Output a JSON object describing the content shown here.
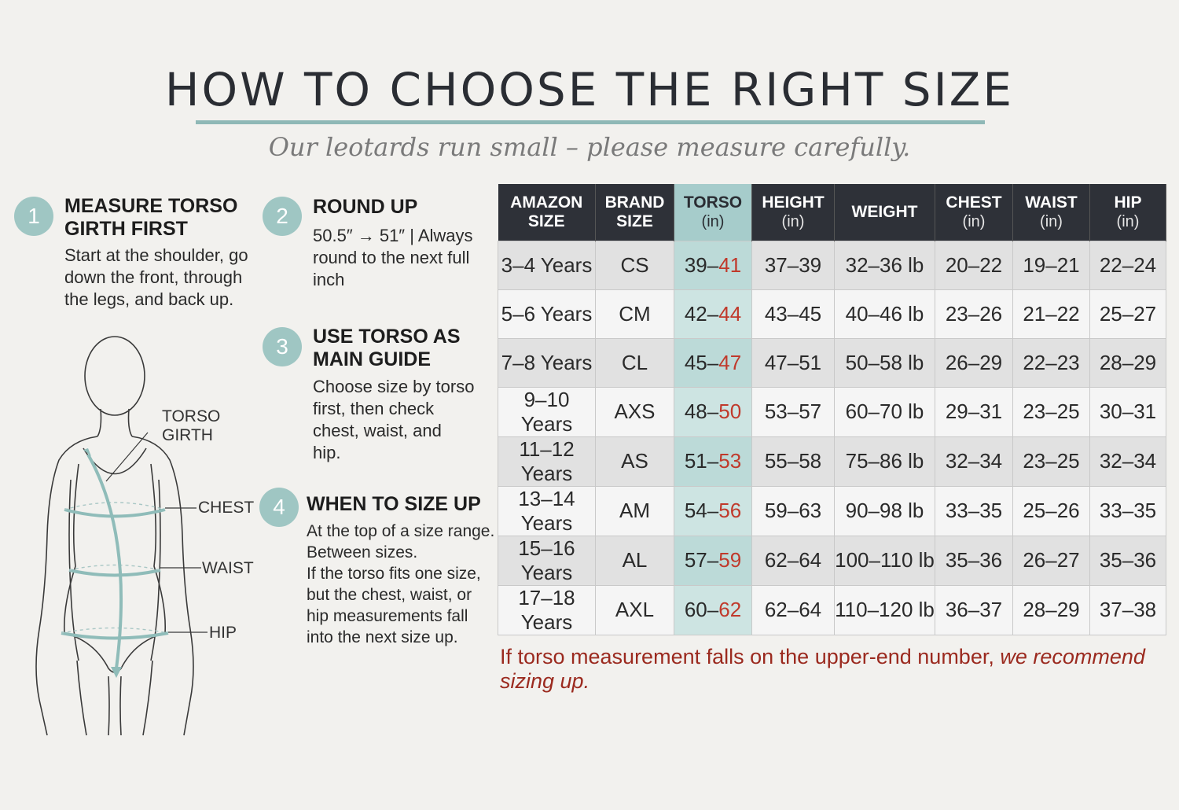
{
  "header": {
    "title": "HOW TO CHOOSE THE RIGHT SIZE",
    "subtitle": "Our leotards run small – please measure carefully."
  },
  "steps": [
    {
      "number": "1",
      "title_lines": [
        "MEASURE TORSO",
        "GIRTH FIRST"
      ],
      "body_lines": [
        "Start at the shoulder, go",
        "down the front, through",
        "the legs, and back up."
      ]
    },
    {
      "number": "2",
      "title_lines": [
        "ROUND UP"
      ],
      "body_lines": [
        "50.5″ → 51″ | Always",
        "round to the next full",
        "inch"
      ]
    },
    {
      "number": "3",
      "title_lines": [
        "USE TORSO AS",
        "MAIN GUIDE"
      ],
      "body_lines": [
        "Choose size by torso",
        "first, then check",
        "chest, waist, and",
        "hip."
      ]
    },
    {
      "number": "4",
      "title_lines": [
        "WHEN TO SIZE UP"
      ],
      "body_lines": [
        "At the top of a size range.",
        "Between sizes.",
        "If the torso fits one size,",
        "but the chest, waist, or",
        "hip measurements fall",
        "into the next size up."
      ]
    }
  ],
  "figure": {
    "labels": {
      "torso_line1": "TORSO",
      "torso_line2": "GIRTH",
      "chest": "CHEST",
      "waist": "WAIST",
      "hip": "HIP"
    },
    "accent_color": "#8fbcb9"
  },
  "table": {
    "headers": [
      {
        "line1": "AMAZON",
        "line2": "SIZE",
        "unit": ""
      },
      {
        "line1": "BRAND",
        "line2": "SIZE",
        "unit": ""
      },
      {
        "line1": "TORSO",
        "line2": "",
        "unit": "(in)"
      },
      {
        "line1": "HEIGHT",
        "line2": "",
        "unit": "(in)"
      },
      {
        "line1": "WEIGHT",
        "line2": "",
        "unit": ""
      },
      {
        "line1": "CHEST",
        "line2": "",
        "unit": "(in)"
      },
      {
        "line1": "WAIST",
        "line2": "",
        "unit": "(in)"
      },
      {
        "line1": "HIP",
        "line2": "",
        "unit": "(in)"
      }
    ],
    "rows": [
      {
        "amazon": "3–4 Years",
        "brand": "CS",
        "torso_low": "39–",
        "torso_high": "41",
        "height": "37–39",
        "weight": "32–36 lb",
        "chest": "20–22",
        "waist": "19–21",
        "hip": "22–24"
      },
      {
        "amazon": "5–6 Years",
        "brand": "CM",
        "torso_low": "42–",
        "torso_high": "44",
        "height": "43–45",
        "weight": "40–46 lb",
        "chest": "23–26",
        "waist": "21–22",
        "hip": "25–27"
      },
      {
        "amazon": "7–8 Years",
        "brand": "CL",
        "torso_low": "45–",
        "torso_high": "47",
        "height": "47–51",
        "weight": "50–58 lb",
        "chest": "26–29",
        "waist": "22–23",
        "hip": "28–29"
      },
      {
        "amazon": "9–10 Years",
        "brand": "AXS",
        "torso_low": "48–",
        "torso_high": "50",
        "height": "53–57",
        "weight": "60–70 lb",
        "chest": "29–31",
        "waist": "23–25",
        "hip": "30–31"
      },
      {
        "amazon": "11–12 Years",
        "brand": "AS",
        "torso_low": "51–",
        "torso_high": "53",
        "height": "55–58",
        "weight": "75–86 lb",
        "chest": "32–34",
        "waist": "23–25",
        "hip": "32–34"
      },
      {
        "amazon": "13–14 Years",
        "brand": "AM",
        "torso_low": "54–",
        "torso_high": "56",
        "height": "59–63",
        "weight": "90–98 lb",
        "chest": "33–35",
        "waist": "25–26",
        "hip": "33–35"
      },
      {
        "amazon": "15–16 Years",
        "brand": "AL",
        "torso_low": "57–",
        "torso_high": "59",
        "height": "62–64",
        "weight": "100–110 lb",
        "chest": "35–36",
        "waist": "26–27",
        "hip": "35–36"
      },
      {
        "amazon": "17–18 Years",
        "brand": "AXL",
        "torso_low": "60–",
        "torso_high": "62",
        "height": "62–64",
        "weight": "110–120 lb",
        "chest": "36–37",
        "waist": "28–29",
        "hip": "37–38"
      }
    ]
  },
  "footnote": {
    "plain": "If torso measurement falls on the upper-end number, ",
    "italic": "we recommend sizing up."
  },
  "colors": {
    "accent_teal": "#9fc6c3",
    "header_dark": "#2e3138",
    "highlight_red": "#c0392b",
    "footnote_red": "#9b2a1f"
  }
}
